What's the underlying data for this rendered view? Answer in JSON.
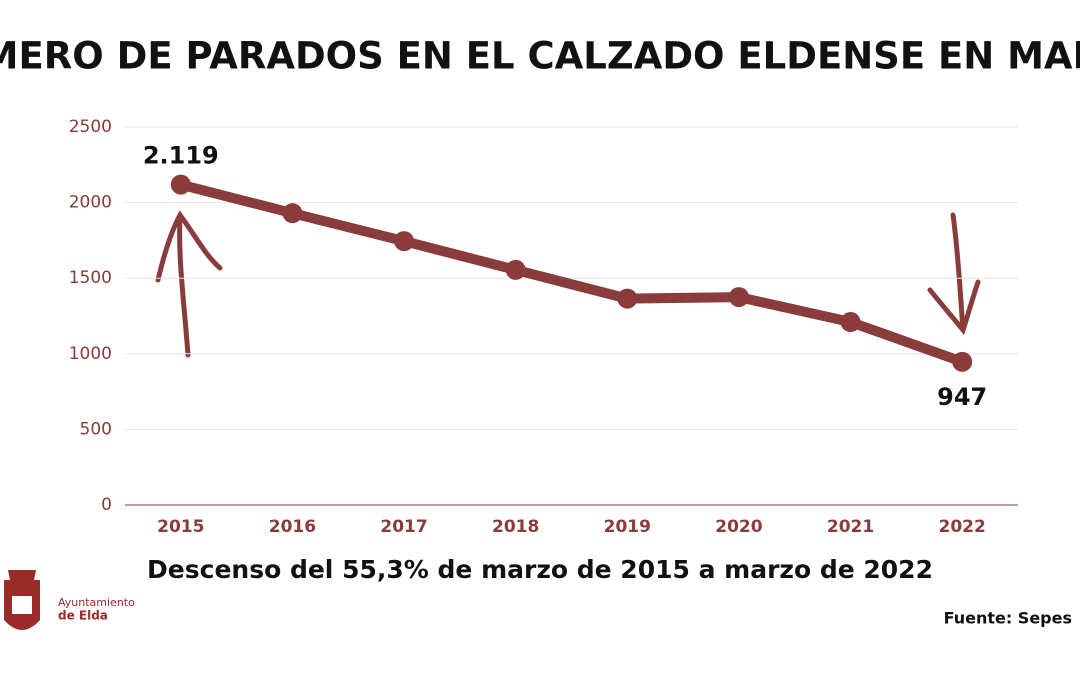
{
  "chart_data": {
    "type": "line",
    "title": "NÚMERO DE PARADOS EN EL CALZADO ELDENSE EN MARZO",
    "subtitle": "Descenso del 55,3% de marzo de 2015 a marzo de 2022",
    "source": "Fuente: Sepes",
    "categories": [
      "2015",
      "2016",
      "2017",
      "2018",
      "2019",
      "2020",
      "2021",
      "2022"
    ],
    "values": [
      2119,
      1930,
      1745,
      1555,
      1365,
      1375,
      1210,
      947
    ],
    "value_labels": [
      "2.119",
      null,
      null,
      null,
      null,
      null,
      null,
      "947"
    ],
    "color": "#8a3b3b",
    "ylim": [
      0,
      2500
    ],
    "yticks": [
      0,
      500,
      1000,
      1500,
      2000,
      2500
    ],
    "grid": true
  },
  "logo": {
    "line1": "Ayuntamiento",
    "line2": "de Elda"
  }
}
